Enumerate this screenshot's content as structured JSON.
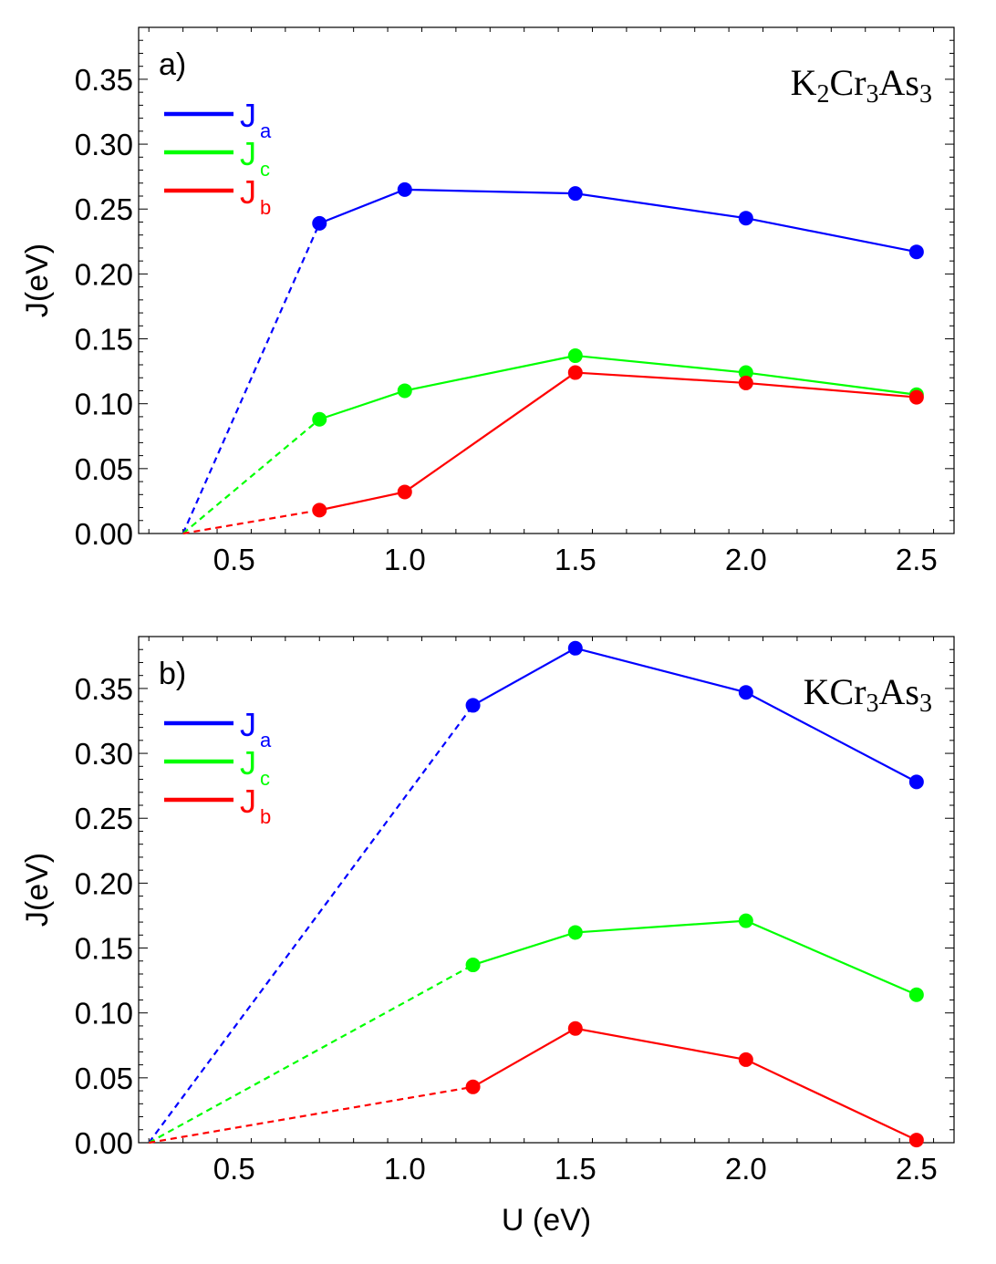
{
  "chart_data": [
    {
      "type": "line",
      "panel_label": "a)",
      "formula": [
        {
          "t": "K"
        },
        {
          "t": "2",
          "sub": true
        },
        {
          "t": "Cr"
        },
        {
          "t": "3",
          "sub": true
        },
        {
          "t": "As"
        },
        {
          "t": "3",
          "sub": true
        }
      ],
      "xlabel": "",
      "ylabel": "J(eV)",
      "xlim": [
        0.22,
        2.61
      ],
      "ylim": [
        0,
        0.39
      ],
      "xticks": [
        "0.5",
        "1.0",
        "1.5",
        "2.0",
        "2.5"
      ],
      "yticks": [
        "0.00",
        "0.05",
        "0.10",
        "0.15",
        "0.20",
        "0.25",
        "0.30",
        "0.35"
      ],
      "legend_position": "top-left",
      "series": [
        {
          "name": "J",
          "sub": "a",
          "color": "#0000ff",
          "x": [
            0.75,
            1.0,
            1.5,
            2.0,
            2.5
          ],
          "y": [
            0.239,
            0.265,
            0.262,
            0.243,
            0.217
          ],
          "extrapolation": {
            "x": [
              0.35,
              0.75
            ],
            "y": [
              0.0,
              0.239
            ]
          }
        },
        {
          "name": "J",
          "sub": "c",
          "color": "#00ff00",
          "x": [
            0.75,
            1.0,
            1.5,
            2.0,
            2.5
          ],
          "y": [
            0.088,
            0.11,
            0.137,
            0.124,
            0.107
          ],
          "extrapolation": {
            "x": [
              0.35,
              0.75
            ],
            "y": [
              0.0,
              0.088
            ]
          }
        },
        {
          "name": "J",
          "sub": "b",
          "color": "#ff0000",
          "x": [
            0.75,
            1.0,
            1.5,
            2.0,
            2.5
          ],
          "y": [
            0.018,
            0.032,
            0.124,
            0.116,
            0.105
          ],
          "extrapolation": {
            "x": [
              0.35,
              0.75
            ],
            "y": [
              0.0,
              0.018
            ]
          }
        }
      ]
    },
    {
      "type": "line",
      "panel_label": "b)",
      "formula": [
        {
          "t": "KCr"
        },
        {
          "t": "3",
          "sub": true
        },
        {
          "t": "As"
        },
        {
          "t": "3",
          "sub": true
        }
      ],
      "xlabel": "U (eV)",
      "ylabel": "J(eV)",
      "xlim": [
        0.22,
        2.61
      ],
      "ylim": [
        0,
        0.39
      ],
      "xticks": [
        "0.5",
        "1.0",
        "1.5",
        "2.0",
        "2.5"
      ],
      "yticks": [
        "0.00",
        "0.05",
        "0.10",
        "0.15",
        "0.20",
        "0.25",
        "0.30",
        "0.35"
      ],
      "legend_position": "top-left",
      "series": [
        {
          "name": "J",
          "sub": "a",
          "color": "#0000ff",
          "x": [
            1.2,
            1.5,
            2.0,
            2.5
          ],
          "y": [
            0.337,
            0.381,
            0.347,
            0.278
          ],
          "extrapolation": {
            "x": [
              0.25,
              1.2
            ],
            "y": [
              0.0,
              0.337
            ]
          }
        },
        {
          "name": "J",
          "sub": "c",
          "color": "#00ff00",
          "x": [
            1.2,
            1.5,
            2.0,
            2.5
          ],
          "y": [
            0.137,
            0.162,
            0.171,
            0.114
          ],
          "extrapolation": {
            "x": [
              0.25,
              1.2
            ],
            "y": [
              0.0,
              0.137
            ]
          }
        },
        {
          "name": "J",
          "sub": "b",
          "color": "#ff0000",
          "x": [
            1.2,
            1.5,
            2.0,
            2.5
          ],
          "y": [
            0.043,
            0.088,
            0.064,
            0.002
          ],
          "extrapolation": {
            "x": [
              0.25,
              1.2
            ],
            "y": [
              0.0,
              0.043
            ]
          }
        }
      ]
    }
  ]
}
